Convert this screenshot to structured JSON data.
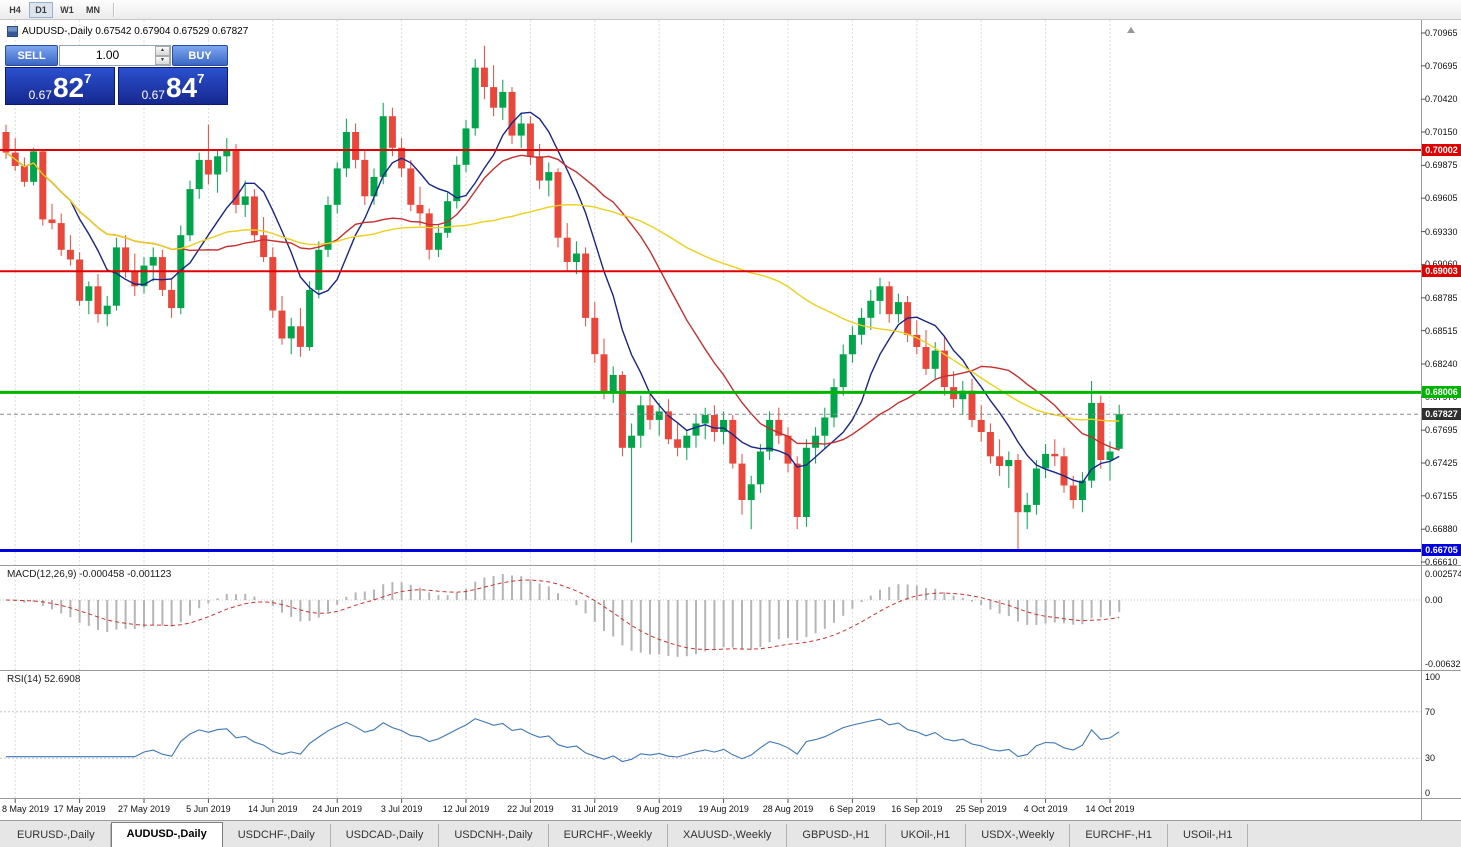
{
  "toolbar": {
    "periods": [
      "H4",
      "D1",
      "W1",
      "MN"
    ],
    "active": "D1"
  },
  "chart": {
    "header_text": "AUDUSD-,Daily  0.67542 0.67904 0.67529 0.67827"
  },
  "one_click": {
    "sell_label": "SELL",
    "buy_label": "BUY",
    "volume": "1.00",
    "bid_prefix": "0.67",
    "bid_big": "82",
    "bid_sup": "7",
    "ask_prefix": "0.67",
    "ask_big": "84",
    "ask_sup": "7"
  },
  "icons": {
    "spin_up": "▲",
    "spin_down": "▼"
  },
  "price_axis": [
    "0.70965",
    "0.70695",
    "0.70420",
    "0.70150",
    "0.69875",
    "0.69605",
    "0.69330",
    "0.69060",
    "0.68785",
    "0.68515",
    "0.68240",
    "0.67970",
    "0.67695",
    "0.67425",
    "0.67155",
    "0.66880",
    "0.66610"
  ],
  "macd": {
    "label": "MACD(12,26,9) -0.000458 -0.001123",
    "axis_labels": [
      "0.002574",
      "0.00",
      "-0.006326"
    ]
  },
  "rsi": {
    "label": "RSI(14) 52.6908",
    "axis_labels": [
      "100",
      "70",
      "30",
      "0"
    ]
  },
  "tabs": {
    "items": [
      "EURUSD-,Daily",
      "AUDUSD-,Daily",
      "USDCHF-,Daily",
      "USDCAD-,Daily",
      "USDCNH-,Daily",
      "EURCHF-,Weekly",
      "XAUUSD-,Weekly",
      "GBPUSD-,H1",
      "UKOil-,H1",
      "USDX-,Weekly",
      "EURCHF-,H1",
      "USOil-,H1"
    ],
    "active_index": 1
  },
  "chart_data": {
    "type": "candlestick",
    "symbol": "AUDUSD-",
    "timeframe": "Daily",
    "ohlc_current": {
      "open": 0.67542,
      "high": 0.67904,
      "low": 0.67529,
      "close": 0.67827
    },
    "bid": 0.67827,
    "ask": 0.67847,
    "x_tick_labels": [
      "8 May 2019",
      "17 May 2019",
      "27 May 2019",
      "5 Jun 2019",
      "14 Jun 2019",
      "24 Jun 2019",
      "3 Jul 2019",
      "12 Jul 2019",
      "22 Jul 2019",
      "31 Jul 2019",
      "9 Aug 2019",
      "19 Aug 2019",
      "28 Aug 2019",
      "6 Sep 2019",
      "16 Sep 2019",
      "25 Sep 2019",
      "4 Oct 2019",
      "14 Oct 2019"
    ],
    "x_tick_first_index": 1,
    "x_tick_step": 7,
    "price_range_shown": [
      0.6661,
      0.70965
    ],
    "candle_up_color": "#00a44a",
    "candle_down_color": "#e8483c",
    "candles": [
      [
        0.7015,
        0.7021,
        0.6993,
        0.6998
      ],
      [
        0.6998,
        0.701,
        0.6983,
        0.6987
      ],
      [
        0.6987,
        0.6994,
        0.697,
        0.6974
      ],
      [
        0.6974,
        0.7002,
        0.6971,
        0.6999
      ],
      [
        0.6999,
        0.7,
        0.6938,
        0.6943
      ],
      [
        0.6943,
        0.6956,
        0.6935,
        0.694
      ],
      [
        0.694,
        0.6948,
        0.6913,
        0.6918
      ],
      [
        0.6918,
        0.693,
        0.6905,
        0.691
      ],
      [
        0.691,
        0.6916,
        0.6872,
        0.6876
      ],
      [
        0.6876,
        0.6892,
        0.6865,
        0.6888
      ],
      [
        0.6888,
        0.6898,
        0.6858,
        0.6865
      ],
      [
        0.6865,
        0.688,
        0.6855,
        0.6872
      ],
      [
        0.6872,
        0.6928,
        0.6868,
        0.692
      ],
      [
        0.692,
        0.693,
        0.6895,
        0.69
      ],
      [
        0.69,
        0.6915,
        0.688,
        0.6888
      ],
      [
        0.6888,
        0.6912,
        0.6882,
        0.6905
      ],
      [
        0.6905,
        0.692,
        0.6892,
        0.6912
      ],
      [
        0.6912,
        0.6918,
        0.688,
        0.6885
      ],
      [
        0.6885,
        0.6895,
        0.6862,
        0.687
      ],
      [
        0.687,
        0.6938,
        0.6865,
        0.693
      ],
      [
        0.693,
        0.6975,
        0.6925,
        0.6968
      ],
      [
        0.6968,
        0.6998,
        0.696,
        0.6992
      ],
      [
        0.6992,
        0.7021,
        0.6972,
        0.698
      ],
      [
        0.698,
        0.7,
        0.6965,
        0.6995
      ],
      [
        0.6995,
        0.701,
        0.6982,
        0.7
      ],
      [
        0.7,
        0.7005,
        0.6948,
        0.6955
      ],
      [
        0.6955,
        0.6975,
        0.6945,
        0.6962
      ],
      [
        0.6962,
        0.6968,
        0.6925,
        0.693
      ],
      [
        0.693,
        0.6945,
        0.6908,
        0.6912
      ],
      [
        0.6912,
        0.692,
        0.6862,
        0.6868
      ],
      [
        0.6868,
        0.688,
        0.684,
        0.6845
      ],
      [
        0.6845,
        0.6862,
        0.6832,
        0.6855
      ],
      [
        0.6855,
        0.687,
        0.683,
        0.6838
      ],
      [
        0.6838,
        0.6892,
        0.6835,
        0.6885
      ],
      [
        0.6885,
        0.6925,
        0.6878,
        0.6918
      ],
      [
        0.6918,
        0.6962,
        0.6912,
        0.6955
      ],
      [
        0.6955,
        0.699,
        0.6948,
        0.6985
      ],
      [
        0.6985,
        0.7026,
        0.6978,
        0.7015
      ],
      [
        0.7015,
        0.7022,
        0.6985,
        0.6992
      ],
      [
        0.6992,
        0.7,
        0.6955,
        0.6962
      ],
      [
        0.6962,
        0.6985,
        0.6955,
        0.6978
      ],
      [
        0.6978,
        0.7039,
        0.6972,
        0.7028
      ],
      [
        0.7028,
        0.7035,
        0.6995,
        0.7002
      ],
      [
        0.7002,
        0.701,
        0.6978,
        0.6985
      ],
      [
        0.6985,
        0.6992,
        0.695,
        0.6955
      ],
      [
        0.6955,
        0.697,
        0.6938,
        0.6948
      ],
      [
        0.6948,
        0.6952,
        0.691,
        0.6918
      ],
      [
        0.6918,
        0.6938,
        0.6912,
        0.6932
      ],
      [
        0.6932,
        0.6965,
        0.6928,
        0.6958
      ],
      [
        0.6958,
        0.6995,
        0.6952,
        0.6988
      ],
      [
        0.6988,
        0.7025,
        0.6982,
        0.7018
      ],
      [
        0.7018,
        0.7075,
        0.7012,
        0.7068
      ],
      [
        0.7068,
        0.7086,
        0.7042,
        0.7052
      ],
      [
        0.7052,
        0.707,
        0.7028,
        0.7035
      ],
      [
        0.7035,
        0.7058,
        0.7025,
        0.7048
      ],
      [
        0.7048,
        0.7052,
        0.7005,
        0.7012
      ],
      [
        0.7012,
        0.703,
        0.7002,
        0.7022
      ],
      [
        0.7022,
        0.7028,
        0.6988,
        0.6995
      ],
      [
        0.6995,
        0.7005,
        0.6968,
        0.6975
      ],
      [
        0.6975,
        0.699,
        0.6962,
        0.6982
      ],
      [
        0.6982,
        0.6985,
        0.692,
        0.6928
      ],
      [
        0.6928,
        0.694,
        0.69,
        0.6908
      ],
      [
        0.6908,
        0.6925,
        0.6898,
        0.6915
      ],
      [
        0.6915,
        0.692,
        0.6855,
        0.6862
      ],
      [
        0.6862,
        0.6875,
        0.6825,
        0.6832
      ],
      [
        0.6832,
        0.6845,
        0.6795,
        0.68
      ],
      [
        0.68,
        0.6822,
        0.6792,
        0.6815
      ],
      [
        0.6815,
        0.6818,
        0.6748,
        0.6755
      ],
      [
        0.6755,
        0.6775,
        0.6677,
        0.6765
      ],
      [
        0.6765,
        0.6798,
        0.6755,
        0.679
      ],
      [
        0.679,
        0.68,
        0.677,
        0.6778
      ],
      [
        0.6778,
        0.6792,
        0.6765,
        0.6785
      ],
      [
        0.6785,
        0.6795,
        0.6758,
        0.6762
      ],
      [
        0.6762,
        0.6775,
        0.6748,
        0.6755
      ],
      [
        0.6755,
        0.677,
        0.6745,
        0.6765
      ],
      [
        0.6765,
        0.6782,
        0.6755,
        0.6775
      ],
      [
        0.6775,
        0.6788,
        0.6762,
        0.6782
      ],
      [
        0.6782,
        0.679,
        0.676,
        0.6768
      ],
      [
        0.6768,
        0.6785,
        0.6758,
        0.6778
      ],
      [
        0.6778,
        0.6782,
        0.6738,
        0.6742
      ],
      [
        0.6742,
        0.675,
        0.67,
        0.6712
      ],
      [
        0.6712,
        0.6732,
        0.6688,
        0.6725
      ],
      [
        0.6725,
        0.6758,
        0.6718,
        0.6752
      ],
      [
        0.6752,
        0.6785,
        0.6745,
        0.6778
      ],
      [
        0.6778,
        0.6788,
        0.6758,
        0.6765
      ],
      [
        0.6765,
        0.6772,
        0.6735,
        0.6742
      ],
      [
        0.6742,
        0.6748,
        0.6688,
        0.6698
      ],
      [
        0.6698,
        0.6762,
        0.669,
        0.6755
      ],
      [
        0.6755,
        0.6772,
        0.6742,
        0.6765
      ],
      [
        0.6765,
        0.6788,
        0.6755,
        0.678
      ],
      [
        0.678,
        0.6812,
        0.6772,
        0.6805
      ],
      [
        0.6805,
        0.684,
        0.6798,
        0.6832
      ],
      [
        0.6832,
        0.6855,
        0.6825,
        0.6848
      ],
      [
        0.6848,
        0.687,
        0.684,
        0.6862
      ],
      [
        0.6862,
        0.6885,
        0.6852,
        0.6876
      ],
      [
        0.6876,
        0.6895,
        0.6865,
        0.6888
      ],
      [
        0.6888,
        0.6892,
        0.6858,
        0.6865
      ],
      [
        0.6865,
        0.6882,
        0.6858,
        0.6875
      ],
      [
        0.6875,
        0.688,
        0.6842,
        0.6848
      ],
      [
        0.6848,
        0.686,
        0.6832,
        0.6838
      ],
      [
        0.6838,
        0.6852,
        0.6815,
        0.682
      ],
      [
        0.682,
        0.6842,
        0.6812,
        0.6835
      ],
      [
        0.6835,
        0.6846,
        0.6798,
        0.6805
      ],
      [
        0.6805,
        0.6818,
        0.6788,
        0.6795
      ],
      [
        0.6795,
        0.681,
        0.6782,
        0.6802
      ],
      [
        0.6802,
        0.6812,
        0.6772,
        0.6778
      ],
      [
        0.6778,
        0.679,
        0.676,
        0.6768
      ],
      [
        0.6768,
        0.6775,
        0.6742,
        0.6748
      ],
      [
        0.6748,
        0.6762,
        0.6732,
        0.674
      ],
      [
        0.674,
        0.6752,
        0.6722,
        0.6745
      ],
      [
        0.6745,
        0.675,
        0.6671,
        0.6702
      ],
      [
        0.6702,
        0.6718,
        0.6688,
        0.6708
      ],
      [
        0.6708,
        0.6745,
        0.67,
        0.6738
      ],
      [
        0.6738,
        0.6758,
        0.673,
        0.675
      ],
      [
        0.675,
        0.6762,
        0.674,
        0.6748
      ],
      [
        0.6748,
        0.6755,
        0.6718,
        0.6724
      ],
      [
        0.6724,
        0.6732,
        0.6705,
        0.6712
      ],
      [
        0.6712,
        0.6735,
        0.6702,
        0.6728
      ],
      [
        0.6728,
        0.681,
        0.6722,
        0.6792
      ],
      [
        0.6792,
        0.6798,
        0.6738,
        0.6745
      ],
      [
        0.6745,
        0.676,
        0.6728,
        0.6752
      ],
      [
        0.67542,
        0.67904,
        0.67529,
        0.67827
      ]
    ],
    "overlays": [
      {
        "name": "sma-fast",
        "period": 8,
        "color": "#18258c"
      },
      {
        "name": "sma-mid",
        "period": 20,
        "color": "#c62f2f"
      },
      {
        "name": "sma-slow",
        "period": 50,
        "color": "#eecf1b"
      }
    ],
    "levels": [
      {
        "label": "0.70002",
        "price": 0.70002,
        "color": "#e00000",
        "width": 2
      },
      {
        "label": "0.69003",
        "price": 0.69003,
        "color": "#e00000",
        "width": 2
      },
      {
        "label": "0.68006",
        "price": 0.68006,
        "color": "#00b400",
        "width": 3
      },
      {
        "label": "0.66705",
        "price": 0.66705,
        "color": "#0000e0",
        "width": 3
      }
    ],
    "current_price": {
      "label": "0.67827",
      "price": 0.67827,
      "badge_color": "#2f2f2f"
    },
    "indicators": [
      {
        "name": "MACD",
        "params": [
          12,
          26,
          9
        ],
        "value": -0.000458,
        "signal": -0.001123,
        "range": [
          -0.006326,
          0.002574
        ]
      },
      {
        "name": "RSI",
        "params": [
          14
        ],
        "value": 52.6908,
        "range": [
          0,
          100
        ],
        "levels": [
          70,
          30
        ]
      }
    ]
  }
}
